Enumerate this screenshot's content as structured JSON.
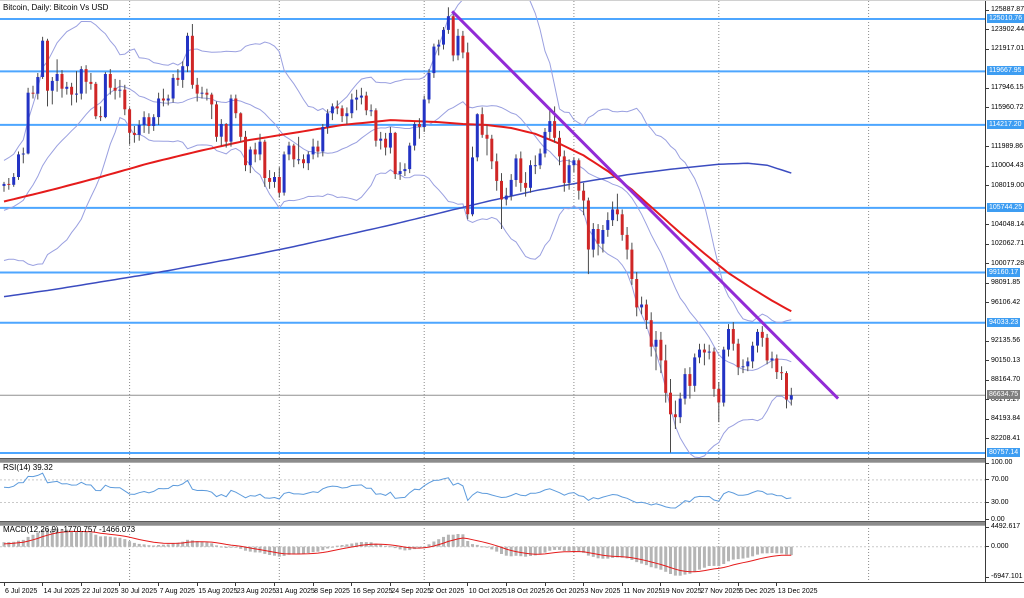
{
  "window": {
    "title": "Bitcoin, Daily: Bitcoin Vs USD"
  },
  "indicator_labels": {
    "rsi": "RSI(14) 39.32",
    "macd": "MACD(12,26,9) -1770.757 -1466.073"
  },
  "colors": {
    "bull": "#2333c4",
    "bear": "#cf2626",
    "wick": "#4a4a4a",
    "sr_line": "#4da6ff",
    "sr_flag_bg": "#3d9df2",
    "price_flag_bg": "#7f7f7f",
    "current_price_line": "#909090",
    "bollinger": "#9aa0e0",
    "ma_fast": "#e51b1b",
    "ma_slow": "#3b4cc0",
    "trendline": "#922bd6",
    "separator": "#8a8a8a",
    "rsi_line": "#5d9bdc",
    "level_dots": "#c9c9c9",
    "macd_hist": "#b5b5b5",
    "macd_signal": "#e51b1b"
  },
  "chart_data": {
    "type": "candlestick",
    "symbol": "Bitcoin Vs USD",
    "timeframe": "Daily",
    "start_date": "6 Jul 2025",
    "y_ticks": [
      125887.87,
      123902.44,
      121917.01,
      117946.15,
      115960.72,
      111989.86,
      110004.43,
      108019.0,
      104048.14,
      102062.71,
      100077.28,
      98091.85,
      96106.42,
      92135.56,
      90150.13,
      88164.7,
      86179.27,
      84193.84,
      82208.41
    ],
    "sr_levels": [
      125010.76,
      119667.95,
      114217.2,
      105744.25,
      99160.17,
      94033.23,
      80757.14
    ],
    "current_price": 86634.75,
    "label_days": [
      0,
      8,
      16,
      24,
      32,
      40,
      48,
      56,
      64,
      72,
      80,
      88,
      96,
      104,
      112,
      120,
      128,
      136,
      144,
      152,
      160
    ],
    "label_texts": [
      "6 Jul 2025",
      "14 Jul 2025",
      "22 Jul 2025",
      "30 Jul 2025",
      "7 Aug 2025",
      "15 Aug 2025",
      "23 Aug 2025",
      "31 Aug 2025",
      "8 Sep 2025",
      "16 Sep 2025",
      "24 Sep 2025",
      "2 Oct 2025",
      "10 Oct 2025",
      "18 Oct 2025",
      "26 Oct 2025",
      "3 Nov 2025",
      "11 Nov 2025",
      "19 Nov 2025",
      "27 Nov 2025",
      "5 Dec 2025",
      "13 Dec 2025"
    ],
    "month_separator_days": [
      26,
      57,
      87,
      118,
      148,
      179
    ],
    "trendline": {
      "d1": 92.8,
      "p1": 125800,
      "d2": 172.7,
      "p2": 86300
    },
    "ma_fast_period": 50,
    "ma_fast_points": [
      [
        0,
        106400
      ],
      [
        10,
        107600
      ],
      [
        20,
        108900
      ],
      [
        30,
        110300
      ],
      [
        40,
        111500
      ],
      [
        50,
        112600
      ],
      [
        60,
        113400
      ],
      [
        70,
        114200
      ],
      [
        80,
        114700
      ],
      [
        90,
        114500
      ],
      [
        95,
        114300
      ],
      [
        100,
        114200
      ],
      [
        105,
        113900
      ],
      [
        110,
        113300
      ],
      [
        115,
        112300
      ],
      [
        120,
        111100
      ],
      [
        125,
        109500
      ],
      [
        130,
        107600
      ],
      [
        135,
        105400
      ],
      [
        140,
        103200
      ],
      [
        145,
        101100
      ],
      [
        150,
        99100
      ],
      [
        155,
        97500
      ],
      [
        159,
        96300
      ],
      [
        163,
        95200
      ]
    ],
    "ma_slow_period": 200,
    "ma_slow_points": [
      [
        0,
        96700
      ],
      [
        10,
        97400
      ],
      [
        20,
        98200
      ],
      [
        30,
        99000
      ],
      [
        40,
        99900
      ],
      [
        50,
        100800
      ],
      [
        60,
        101800
      ],
      [
        70,
        102900
      ],
      [
        80,
        104000
      ],
      [
        90,
        105200
      ],
      [
        100,
        106400
      ],
      [
        110,
        107500
      ],
      [
        120,
        108400
      ],
      [
        130,
        109200
      ],
      [
        140,
        109800
      ],
      [
        148,
        110200
      ],
      [
        154,
        110300
      ],
      [
        158,
        110100
      ],
      [
        163,
        109300
      ]
    ],
    "bollinger_period": 20,
    "bollinger_deviation": 2,
    "rsi": {
      "period": 14,
      "value": 39.32,
      "levels": [
        70,
        30
      ],
      "axis": [
        100,
        70,
        30,
        0
      ]
    },
    "macd": {
      "fast": 12,
      "slow": 26,
      "signal": 9,
      "value": -1770.757,
      "signal_value": -1466.073,
      "axis": [
        4492.617,
        0.0,
        -6947.101
      ]
    },
    "pre_closes": [
      105200,
      104100,
      105100,
      105000,
      104600,
      101100,
      102700,
      101500,
      100900,
      102100,
      106000,
      107000,
      107300,
      108400,
      107100,
      108200,
      107800,
      106500,
      108000,
      108200
    ],
    "candles": [
      [
        108000,
        108400,
        107400,
        108200
      ],
      [
        108200,
        108800,
        107600,
        108100
      ],
      [
        108100,
        109300,
        107900,
        108900
      ],
      [
        108900,
        111500,
        108600,
        111200
      ],
      [
        111200,
        111900,
        110300,
        111300
      ],
      [
        111300,
        118000,
        111200,
        117500
      ],
      [
        117500,
        118200,
        116900,
        117400
      ],
      [
        117400,
        119500,
        116800,
        119100
      ],
      [
        119100,
        123200,
        118900,
        122800
      ],
      [
        122800,
        123000,
        116100,
        117700
      ],
      [
        117700,
        119100,
        116300,
        118700
      ],
      [
        118700,
        120900,
        117600,
        119400
      ],
      [
        119400,
        119800,
        117000,
        117900
      ],
      [
        117900,
        118600,
        117300,
        118100
      ],
      [
        118100,
        118500,
        116200,
        117300
      ],
      [
        117300,
        119700,
        116500,
        117400
      ],
      [
        117400,
        120200,
        116800,
        119900
      ],
      [
        119900,
        120300,
        117400,
        118600
      ],
      [
        118600,
        119500,
        117800,
        118400
      ],
      [
        118400,
        118600,
        114800,
        115100
      ],
      [
        115100,
        116100,
        114600,
        115000
      ],
      [
        115000,
        119600,
        114900,
        119400
      ],
      [
        119400,
        119900,
        117300,
        118000
      ],
      [
        118000,
        118900,
        116800,
        117700
      ],
      [
        117700,
        118800,
        117000,
        117800
      ],
      [
        117800,
        118300,
        115200,
        115800
      ],
      [
        115800,
        116000,
        112200,
        113400
      ],
      [
        113400,
        114100,
        112400,
        113200
      ],
      [
        113200,
        114700,
        112600,
        114200
      ],
      [
        114200,
        115600,
        113400,
        115000
      ],
      [
        115000,
        115400,
        113300,
        114100
      ],
      [
        114100,
        115300,
        113600,
        115000
      ],
      [
        115000,
        117500,
        114200,
        116900
      ],
      [
        116900,
        117900,
        116100,
        116700
      ],
      [
        116700,
        117300,
        116200,
        116900
      ],
      [
        116900,
        119400,
        116500,
        119000
      ],
      [
        119000,
        119900,
        118200,
        118800
      ],
      [
        118800,
        120700,
        118000,
        120200
      ],
      [
        120200,
        123600,
        119600,
        123300
      ],
      [
        123300,
        124500,
        117900,
        118300
      ],
      [
        118300,
        119000,
        116600,
        117400
      ],
      [
        117400,
        118100,
        116900,
        117500
      ],
      [
        117500,
        117900,
        116700,
        117300
      ],
      [
        117300,
        117500,
        114800,
        116300
      ],
      [
        116300,
        116600,
        112500,
        113000
      ],
      [
        113000,
        114800,
        112100,
        114300
      ],
      [
        114300,
        114400,
        111900,
        112500
      ],
      [
        112500,
        117300,
        112000,
        116900
      ],
      [
        116900,
        117300,
        114900,
        115400
      ],
      [
        115400,
        115500,
        112500,
        113000
      ],
      [
        113000,
        113600,
        109500,
        110100
      ],
      [
        110100,
        112000,
        109300,
        111700
      ],
      [
        111700,
        112400,
        110400,
        111200
      ],
      [
        111200,
        113300,
        110600,
        112500
      ],
      [
        112500,
        112700,
        107900,
        108800
      ],
      [
        108800,
        109600,
        107700,
        108400
      ],
      [
        108400,
        109400,
        107800,
        108900
      ],
      [
        108900,
        109900,
        106800,
        107300
      ],
      [
        107300,
        111500,
        107000,
        111200
      ],
      [
        111200,
        112500,
        110600,
        112100
      ],
      [
        112100,
        112300,
        109900,
        110700
      ],
      [
        110700,
        113000,
        110200,
        110700
      ],
      [
        110700,
        111200,
        109800,
        110300
      ],
      [
        110300,
        111500,
        109600,
        111200
      ],
      [
        111200,
        112800,
        110700,
        112000
      ],
      [
        112000,
        112600,
        110900,
        111500
      ],
      [
        111500,
        114300,
        111000,
        114000
      ],
      [
        114000,
        115800,
        113300,
        115400
      ],
      [
        115400,
        116400,
        114700,
        116100
      ],
      [
        116100,
        116700,
        115300,
        115900
      ],
      [
        115900,
        116200,
        114500,
        115100
      ],
      [
        115100,
        116000,
        114300,
        115400
      ],
      [
        115400,
        117400,
        114900,
        116800
      ],
      [
        116800,
        117800,
        115700,
        117000
      ],
      [
        117000,
        118000,
        116300,
        117200
      ],
      [
        117200,
        117600,
        115200,
        115700
      ],
      [
        115700,
        116300,
        115100,
        115700
      ],
      [
        115700,
        115900,
        112000,
        112600
      ],
      [
        112600,
        113500,
        111700,
        112800
      ],
      [
        112800,
        113400,
        111100,
        111900
      ],
      [
        111900,
        114000,
        111300,
        113400
      ],
      [
        113400,
        113500,
        108700,
        109200
      ],
      [
        109200,
        110400,
        108600,
        109500
      ],
      [
        109500,
        110300,
        109000,
        109700
      ],
      [
        109700,
        112400,
        109300,
        112100
      ],
      [
        112100,
        114500,
        111600,
        114300
      ],
      [
        114300,
        114900,
        112800,
        114000
      ],
      [
        114000,
        117200,
        113500,
        116800
      ],
      [
        116800,
        119900,
        116400,
        119500
      ],
      [
        119500,
        122500,
        119000,
        122200
      ],
      [
        122200,
        122900,
        121300,
        122400
      ],
      [
        122400,
        124200,
        121900,
        123900
      ],
      [
        123900,
        126200,
        123500,
        125300
      ],
      [
        125300,
        125600,
        120700,
        121300
      ],
      [
        121300,
        124000,
        120800,
        123300
      ],
      [
        123300,
        123800,
        121000,
        121600
      ],
      [
        121600,
        122600,
        104600,
        105100
      ],
      [
        105100,
        112000,
        104900,
        110900
      ],
      [
        110900,
        115400,
        110500,
        115300
      ],
      [
        115300,
        116000,
        112900,
        113200
      ],
      [
        113200,
        114200,
        111100,
        112800
      ],
      [
        112800,
        113200,
        109700,
        110500
      ],
      [
        110500,
        111300,
        107500,
        108500
      ],
      [
        108500,
        109300,
        103600,
        106600
      ],
      [
        106600,
        107800,
        106000,
        107000
      ],
      [
        107000,
        109200,
        106500,
        108600
      ],
      [
        108600,
        111200,
        107900,
        110800
      ],
      [
        110800,
        111500,
        107400,
        108300
      ],
      [
        108300,
        109400,
        106900,
        107800
      ],
      [
        107800,
        110600,
        107300,
        110100
      ],
      [
        110100,
        111100,
        109200,
        110100
      ],
      [
        110100,
        111800,
        109700,
        111300
      ],
      [
        111300,
        113900,
        110900,
        113500
      ],
      [
        113500,
        115800,
        112800,
        114600
      ],
      [
        114600,
        116100,
        112400,
        112900
      ],
      [
        112900,
        113600,
        110100,
        111000
      ],
      [
        111000,
        111600,
        107400,
        108300
      ],
      [
        108300,
        110700,
        107600,
        110100
      ],
      [
        110100,
        110900,
        109400,
        110600
      ],
      [
        110600,
        110800,
        106600,
        107500
      ],
      [
        107500,
        108300,
        105000,
        106500
      ],
      [
        106500,
        106800,
        99000,
        101500
      ],
      [
        101500,
        104200,
        100700,
        103600
      ],
      [
        103600,
        104100,
        100900,
        102100
      ],
      [
        102100,
        104000,
        101200,
        103500
      ],
      [
        103500,
        105300,
        102800,
        104500
      ],
      [
        104500,
        106400,
        103900,
        105600
      ],
      [
        105600,
        107200,
        104400,
        105100
      ],
      [
        105100,
        105600,
        102400,
        103000
      ],
      [
        103000,
        103800,
        100500,
        101500
      ],
      [
        101500,
        102200,
        97900,
        98500
      ],
      [
        98500,
        99200,
        94700,
        95600
      ],
      [
        95600,
        96700,
        94900,
        95900
      ],
      [
        95900,
        96400,
        93400,
        94300
      ],
      [
        94300,
        95100,
        90600,
        91600
      ],
      [
        91600,
        93200,
        89200,
        92300
      ],
      [
        92300,
        93100,
        88900,
        90200
      ],
      [
        90200,
        91800,
        85900,
        86900
      ],
      [
        86900,
        88300,
        80800,
        84700
      ],
      [
        84700,
        86100,
        83200,
        84400
      ],
      [
        84400,
        86900,
        83800,
        86300
      ],
      [
        86300,
        89400,
        85700,
        88800
      ],
      [
        88800,
        89500,
        86300,
        87600
      ],
      [
        87600,
        90900,
        87000,
        90500
      ],
      [
        90500,
        91900,
        89900,
        91300
      ],
      [
        91300,
        91900,
        89700,
        91000
      ],
      [
        91000,
        91800,
        90300,
        91100
      ],
      [
        91100,
        91500,
        86500,
        87300
      ],
      [
        87300,
        88000,
        83900,
        85900
      ],
      [
        85900,
        91600,
        85500,
        91300
      ],
      [
        91300,
        93900,
        90600,
        93400
      ],
      [
        93400,
        94100,
        91200,
        91900
      ],
      [
        91900,
        92400,
        88700,
        89500
      ],
      [
        89500,
        90300,
        88900,
        89600
      ],
      [
        89600,
        90500,
        89100,
        90100
      ],
      [
        90100,
        92100,
        89400,
        91700
      ],
      [
        91700,
        93400,
        91000,
        93100
      ],
      [
        93100,
        93700,
        91600,
        92500
      ],
      [
        92500,
        92900,
        89800,
        90200
      ],
      [
        90200,
        91100,
        89400,
        90400
      ],
      [
        90400,
        90800,
        88300,
        89000
      ],
      [
        89000,
        89600,
        88200,
        88900
      ],
      [
        88900,
        89100,
        85300,
        86200
      ],
      [
        86200,
        87400,
        85600,
        86634.75
      ]
    ]
  }
}
